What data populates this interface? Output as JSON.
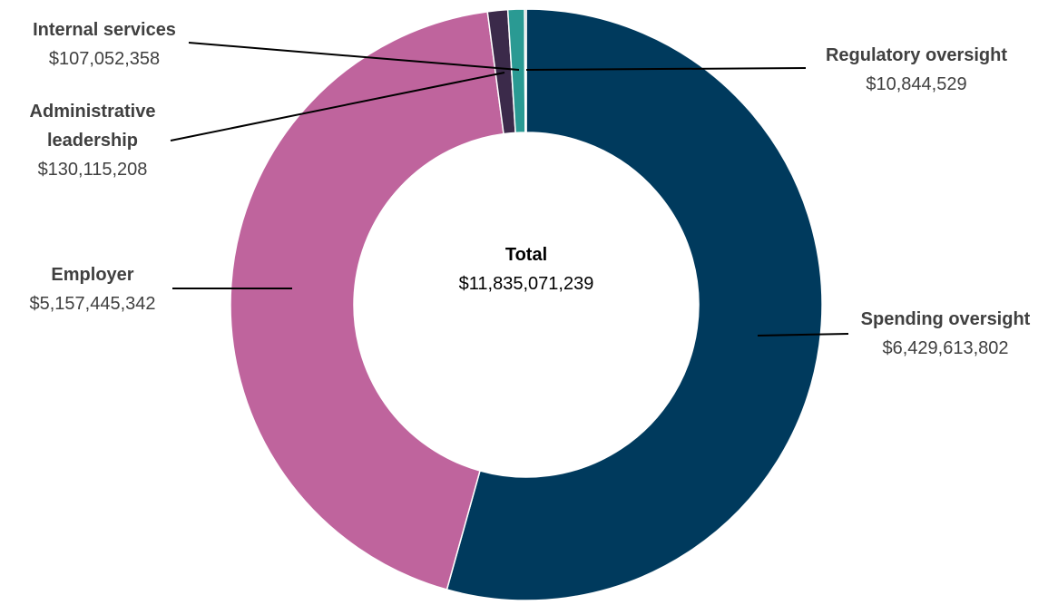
{
  "chart_data": {
    "type": "donut",
    "categories": [
      "Spending oversight",
      "Employer",
      "Administrative leadership",
      "Internal services",
      "Regulatory oversight"
    ],
    "values": [
      6429613802,
      5157445342,
      130115208,
      107052358,
      10844529
    ],
    "value_labels": [
      "$6,429,613,802",
      "$5,157,445,342",
      "$130,115,208",
      "$107,052,358",
      "$10,844,529"
    ],
    "colors": [
      "#003a5d",
      "#bf649d",
      "#3b2a4a",
      "#2a9a93",
      "#8a8a8a"
    ],
    "center_title": "Total",
    "total": {
      "value": 11835071239,
      "label": "$11,835,071,239"
    }
  }
}
